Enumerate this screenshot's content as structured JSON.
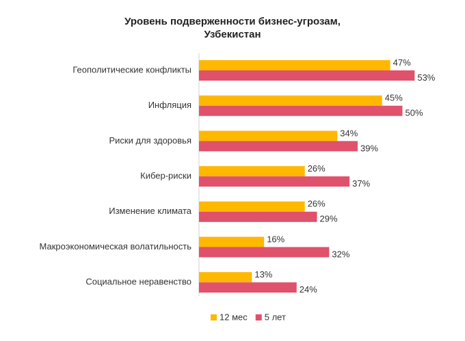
{
  "chart_data": {
    "type": "bar",
    "orientation": "horizontal",
    "title": "Уровень подверженности бизнес-угрозам, Узбекистан",
    "categories": [
      "Геополитические конфликты",
      "Инфляция",
      "Риски для здоровья",
      "Кибер-риски",
      "Изменение климата",
      "Макроэкономическая волатильность",
      "Социальное неравенство"
    ],
    "series": [
      {
        "name": "12 мес",
        "color": "#ffb800",
        "values": [
          47,
          45,
          34,
          26,
          26,
          16,
          13
        ],
        "value_labels": [
          "47%",
          "45%",
          "34%",
          "26%",
          "26%",
          "16%",
          "13%"
        ]
      },
      {
        "name": "5 лет",
        "color": "#e0516b",
        "values": [
          53,
          50,
          39,
          37,
          29,
          32,
          24
        ],
        "value_labels": [
          "53%",
          "50%",
          "39%",
          "37%",
          "29%",
          "32%",
          "24%"
        ]
      }
    ],
    "xlim": [
      0,
      60
    ],
    "legend": "bottom"
  }
}
